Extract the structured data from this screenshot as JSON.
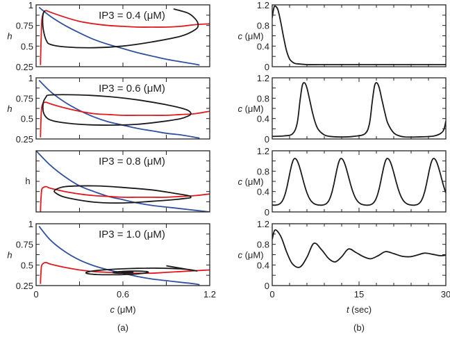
{
  "chart_data": [
    {
      "id": "a1",
      "type": "line",
      "panel": "(a)",
      "annotation": "IP3 = 0.4 (μM)",
      "xlabel": "",
      "ylabel": "h",
      "ylabel_italic": true,
      "xlim": [
        0,
        1.2
      ],
      "ylim": [
        0.25,
        1
      ],
      "yticks": [
        "1",
        "0.75",
        "0.5",
        "0.25"
      ],
      "xticks": [],
      "series": [
        {
          "name": "h-nullcline",
          "color": "#3050a0",
          "x": [
            0.02,
            0.1,
            0.2,
            0.3,
            0.4,
            0.5,
            0.6,
            0.7,
            0.8,
            0.9,
            1.0,
            1.1,
            1.13
          ],
          "y": [
            0.97,
            0.86,
            0.75,
            0.66,
            0.58,
            0.52,
            0.47,
            0.42,
            0.38,
            0.34,
            0.31,
            0.28,
            0.27
          ]
        },
        {
          "name": "c-nullcline",
          "color": "#e0191e",
          "x": [
            0.03,
            0.035,
            0.04,
            0.05,
            0.06,
            0.07,
            0.1,
            0.2,
            0.3,
            0.4,
            0.5,
            0.6,
            0.7,
            0.8,
            0.9,
            1.0,
            1.1,
            1.2
          ],
          "y": [
            0.27,
            0.6,
            0.82,
            0.9,
            0.92,
            0.93,
            0.91,
            0.85,
            0.8,
            0.77,
            0.75,
            0.74,
            0.73,
            0.73,
            0.73,
            0.74,
            0.76,
            0.77
          ],
          "open": true
        },
        {
          "name": "trajectory",
          "color": "#1a1a1a",
          "x": [
            0.95,
            1.05,
            1.1,
            1.12,
            1.1,
            1.0,
            0.8,
            0.6,
            0.4,
            0.2,
            0.1,
            0.07,
            0.05,
            0.045,
            0.05,
            0.06
          ],
          "y": [
            0.95,
            0.9,
            0.83,
            0.76,
            0.7,
            0.62,
            0.55,
            0.5,
            0.48,
            0.49,
            0.52,
            0.57,
            0.7,
            0.83,
            0.9,
            0.93
          ]
        }
      ]
    },
    {
      "id": "a2",
      "type": "line",
      "panel": "(a)",
      "annotation": "IP3 = 0.6 (μM)",
      "xlabel": "",
      "ylabel": "h",
      "ylabel_italic": true,
      "xlim": [
        0,
        1.2
      ],
      "ylim": [
        0.25,
        1
      ],
      "yticks": [
        "1",
        "0.75",
        "0.5",
        "0.25"
      ],
      "xticks": [],
      "series": [
        {
          "name": "h-nullcline",
          "color": "#3050a0",
          "x": [
            0.02,
            0.1,
            0.2,
            0.3,
            0.4,
            0.5,
            0.6,
            0.7,
            0.8,
            0.9,
            1.0,
            1.1,
            1.13
          ],
          "y": [
            0.97,
            0.83,
            0.7,
            0.6,
            0.52,
            0.46,
            0.42,
            0.38,
            0.35,
            0.32,
            0.3,
            0.27,
            0.26
          ]
        },
        {
          "name": "c-nullcline",
          "color": "#e0191e",
          "x": [
            0.03,
            0.035,
            0.04,
            0.05,
            0.07,
            0.1,
            0.2,
            0.3,
            0.4,
            0.5,
            0.6,
            0.7,
            0.8,
            0.9,
            1.0,
            1.1,
            1.2
          ],
          "y": [
            0.27,
            0.55,
            0.65,
            0.69,
            0.7,
            0.68,
            0.63,
            0.59,
            0.56,
            0.55,
            0.54,
            0.54,
            0.54,
            0.54,
            0.55,
            0.56,
            0.59
          ]
        },
        {
          "name": "trajectory",
          "color": "#1a1a1a",
          "closed": true,
          "x": [
            0.07,
            0.1,
            0.3,
            0.5,
            0.7,
            0.9,
            1.0,
            1.05,
            1.07,
            1.05,
            1.0,
            0.9,
            0.7,
            0.5,
            0.3,
            0.15,
            0.08,
            0.05,
            0.05,
            0.07
          ],
          "y": [
            0.77,
            0.79,
            0.79,
            0.77,
            0.73,
            0.67,
            0.63,
            0.6,
            0.56,
            0.53,
            0.5,
            0.47,
            0.43,
            0.42,
            0.43,
            0.46,
            0.5,
            0.58,
            0.7,
            0.77
          ]
        }
      ]
    },
    {
      "id": "a3",
      "type": "line",
      "panel": "(a)",
      "annotation": "IP3 = 0.8 (μM)",
      "xlabel": "",
      "ylabel": "h",
      "ylabel_italic": false,
      "xlim": [
        0,
        1.2
      ],
      "ylim": [
        0.25,
        1
      ],
      "yticks": [],
      "xticks": [],
      "series": [
        {
          "name": "h-nullcline",
          "color": "#3050a0",
          "x": [
            0.0,
            0.1,
            0.2,
            0.3,
            0.4,
            0.5,
            0.6,
            0.7,
            0.8,
            0.9,
            1.0,
            1.1,
            1.2
          ],
          "y": [
            1.0,
            0.82,
            0.68,
            0.57,
            0.5,
            0.44,
            0.4,
            0.36,
            0.33,
            0.31,
            0.29,
            0.27,
            0.25
          ]
        },
        {
          "name": "c-nullcline",
          "color": "#e0191e",
          "x": [
            0.03,
            0.035,
            0.04,
            0.05,
            0.07,
            0.1,
            0.2,
            0.3,
            0.4,
            0.5,
            0.6,
            0.7,
            0.8,
            0.9,
            1.0,
            1.1,
            1.2
          ],
          "y": [
            0.25,
            0.45,
            0.53,
            0.55,
            0.56,
            0.54,
            0.5,
            0.47,
            0.45,
            0.44,
            0.43,
            0.43,
            0.43,
            0.43,
            0.44,
            0.45,
            0.47
          ]
        },
        {
          "name": "trajectory",
          "color": "#1a1a1a",
          "closed": true,
          "x": [
            0.13,
            0.2,
            0.4,
            0.6,
            0.8,
            0.95,
            1.05,
            1.07,
            1.05,
            0.95,
            0.8,
            0.6,
            0.4,
            0.2,
            0.13,
            0.13
          ],
          "y": [
            0.52,
            0.56,
            0.57,
            0.55,
            0.52,
            0.48,
            0.45,
            0.43,
            0.42,
            0.4,
            0.38,
            0.36,
            0.37,
            0.43,
            0.49,
            0.52
          ]
        }
      ]
    },
    {
      "id": "a4",
      "type": "line",
      "panel": "(a)",
      "annotation": "IP3 = 1.0 (μM)",
      "xlabel": "c (μM)",
      "ylabel": "h",
      "ylabel_italic": true,
      "xlim": [
        0,
        1.2
      ],
      "ylim": [
        0.25,
        1
      ],
      "yticks": [
        "1",
        "0.75",
        "0.5",
        "0.25"
      ],
      "xticks": [
        "0",
        "0.6",
        "1.2"
      ],
      "series": [
        {
          "name": "h-nullcline",
          "color": "#3050a0",
          "x": [
            0.02,
            0.1,
            0.2,
            0.3,
            0.4,
            0.5,
            0.6,
            0.7,
            0.8,
            0.9,
            1.0,
            1.1,
            1.13
          ],
          "y": [
            0.97,
            0.8,
            0.66,
            0.56,
            0.49,
            0.44,
            0.4,
            0.36,
            0.33,
            0.31,
            0.29,
            0.27,
            0.26
          ]
        },
        {
          "name": "c-nullcline",
          "color": "#e0191e",
          "x": [
            0.03,
            0.035,
            0.04,
            0.05,
            0.07,
            0.1,
            0.2,
            0.3,
            0.4,
            0.5,
            0.6,
            0.7,
            0.8,
            0.9,
            1.0,
            1.1,
            1.2
          ],
          "y": [
            0.27,
            0.45,
            0.5,
            0.52,
            0.53,
            0.51,
            0.47,
            0.44,
            0.42,
            0.41,
            0.4,
            0.4,
            0.4,
            0.41,
            0.42,
            0.43,
            0.44
          ]
        },
        {
          "name": "trajectory-spiral",
          "color": "#1a1a1a",
          "spiral": true,
          "center": [
            0.62,
            0.41
          ],
          "start": [
            0.9,
            0.49
          ]
        }
      ]
    },
    {
      "id": "b1",
      "type": "line",
      "panel": "(b)",
      "xlabel": "",
      "ylabel": "c (μM)",
      "xlim": [
        0,
        30
      ],
      "ylim": [
        0,
        1.2
      ],
      "yticks": [
        "1.2",
        "0.8",
        "0.4",
        "0"
      ],
      "xticks": [],
      "series": [
        {
          "name": "calcium",
          "color": "#1a1a1a",
          "x": [
            0,
            0.3,
            0.6,
            1.0,
            1.5,
            2.0,
            2.5,
            3.0,
            3.5,
            4.0,
            5.0,
            6.0,
            8.0,
            10,
            15,
            20,
            25,
            30
          ],
          "y": [
            0.95,
            1.15,
            1.17,
            1.1,
            0.85,
            0.55,
            0.3,
            0.15,
            0.09,
            0.06,
            0.05,
            0.04,
            0.04,
            0.04,
            0.04,
            0.04,
            0.04,
            0.04
          ]
        }
      ]
    },
    {
      "id": "b2",
      "type": "line",
      "panel": "(b)",
      "xlabel": "",
      "ylabel": "c (μM)",
      "xlim": [
        0,
        30
      ],
      "ylim": [
        0,
        1.2
      ],
      "yticks": [
        "1.2",
        "0.8",
        "0.4",
        "0"
      ],
      "xticks": [],
      "series": [
        {
          "name": "calcium",
          "color": "#1a1a1a",
          "x": [
            0,
            2,
            3.5,
            4.3,
            4.8,
            5.2,
            5.6,
            6.0,
            6.5,
            7.0,
            7.5,
            8.0,
            9.0,
            10,
            12,
            14,
            16,
            16.8,
            17.3,
            17.7,
            18.1,
            18.5,
            19,
            19.5,
            20,
            21,
            22,
            23,
            25,
            28,
            29.5,
            30
          ],
          "y": [
            0.05,
            0.06,
            0.1,
            0.3,
            0.75,
            1.05,
            1.1,
            1.0,
            0.75,
            0.5,
            0.3,
            0.18,
            0.08,
            0.05,
            0.04,
            0.05,
            0.1,
            0.3,
            0.75,
            1.05,
            1.1,
            1.0,
            0.75,
            0.5,
            0.3,
            0.12,
            0.06,
            0.04,
            0.04,
            0.06,
            0.15,
            0.35
          ]
        }
      ]
    },
    {
      "id": "b3",
      "type": "line",
      "panel": "(b)",
      "xlabel": "",
      "ylabel": "c (μM)",
      "xlim": [
        0,
        30
      ],
      "ylim": [
        0,
        1.2
      ],
      "yticks": [
        "1.2",
        "0.8",
        "0.4",
        "0"
      ],
      "xticks": [],
      "series": [
        {
          "name": "calcium",
          "color": "#1a1a1a",
          "periodic": true,
          "period": 8.0,
          "first_peak": 3.9,
          "peak": 1.05,
          "trough": 0.13
        }
      ]
    },
    {
      "id": "b4",
      "type": "line",
      "panel": "(b)",
      "xlabel": "t (sec)",
      "ylabel": "c (μM)",
      "xlim": [
        0,
        30
      ],
      "ylim": [
        0,
        1.2
      ],
      "yticks": [
        "1.2",
        "0.8",
        "0.4",
        "0"
      ],
      "xticks": [
        "0",
        "15",
        "30"
      ],
      "series": [
        {
          "name": "calcium",
          "color": "#1a1a1a",
          "x": [
            0,
            0.5,
            1.5,
            2.5,
            3.5,
            4.8,
            6.0,
            7.2,
            8.5,
            9.8,
            10.9,
            12,
            13.2,
            14.5,
            15.8,
            17.0,
            18.3,
            19.6,
            21,
            22.4,
            23.8,
            25,
            26.3,
            27.6,
            29,
            30
          ],
          "y": [
            0.9,
            1.08,
            0.95,
            0.65,
            0.42,
            0.36,
            0.55,
            0.82,
            0.7,
            0.52,
            0.46,
            0.56,
            0.71,
            0.64,
            0.56,
            0.52,
            0.58,
            0.66,
            0.62,
            0.57,
            0.56,
            0.59,
            0.63,
            0.61,
            0.58,
            0.59
          ]
        }
      ]
    }
  ],
  "panel_labels": {
    "a": "(a)",
    "b": "(b)"
  },
  "x_titles": {
    "a_prefix": "c",
    "a_unit": " (μM)",
    "b_prefix": "t",
    "b_unit": " (sec)"
  }
}
